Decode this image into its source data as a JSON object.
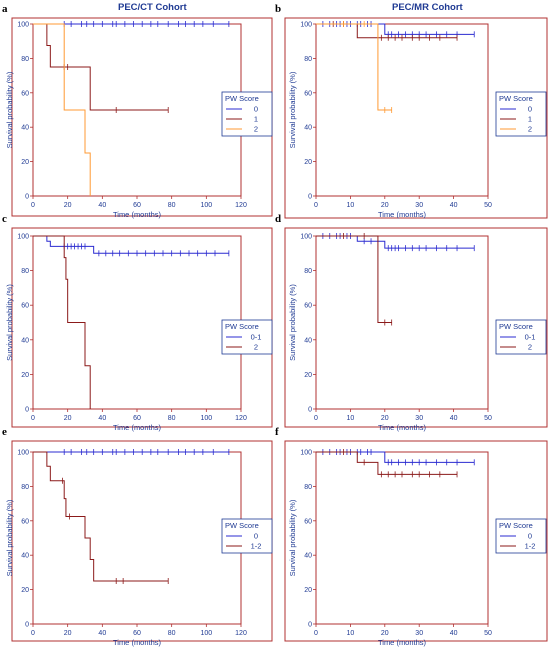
{
  "figure": {
    "column_titles": [
      "PEC/CT Cohort",
      "PEC/MR Cohort"
    ],
    "colors": {
      "frame": "#b03030",
      "axis_text": "#1f3a93",
      "panel_letter": "#000000",
      "series": [
        "#2b2bd0",
        "#8b1a1a",
        "#ff9a33"
      ]
    }
  },
  "chart_data": [
    {
      "panel": "a",
      "type": "line",
      "subtype": "kaplan-meier",
      "xlabel": "Time (months)",
      "ylabel": "Survival probability (%)",
      "xlim": [
        0,
        120
      ],
      "ylim": [
        0,
        100
      ],
      "xticks": [
        0,
        20,
        40,
        60,
        80,
        100,
        120
      ],
      "yticks": [
        0,
        20,
        40,
        60,
        80,
        100
      ],
      "legend_title": "PW Score",
      "legend_position": "right",
      "series": [
        {
          "name": "0",
          "color": "#2b2bd0",
          "end": 113,
          "steps": [
            [
              0,
              100
            ]
          ],
          "censored": [
            18,
            22,
            28,
            31,
            35,
            40,
            46,
            48,
            53,
            58,
            63,
            68,
            72,
            78,
            84,
            88,
            93,
            98,
            104,
            113
          ]
        },
        {
          "name": "1",
          "color": "#8b1a1a",
          "end": 78,
          "steps": [
            [
              0,
              100
            ],
            [
              8,
              87.5
            ],
            [
              10,
              75
            ],
            [
              33,
              50
            ]
          ],
          "censored": [
            18,
            20,
            48,
            78
          ]
        },
        {
          "name": "2",
          "color": "#ff9a33",
          "end": 33,
          "steps": [
            [
              0,
              100
            ],
            [
              18,
              50
            ],
            [
              30,
              25
            ],
            [
              33,
              0
            ]
          ],
          "censored": []
        }
      ]
    },
    {
      "panel": "b",
      "type": "line",
      "subtype": "kaplan-meier",
      "xlabel": "Time (months)",
      "ylabel": "Survival probability (%)",
      "xlim": [
        0,
        50
      ],
      "ylim": [
        0,
        100
      ],
      "xticks": [
        0,
        10,
        20,
        30,
        40,
        50
      ],
      "yticks": [
        0,
        20,
        40,
        60,
        80,
        100
      ],
      "legend_title": "PW Score",
      "legend_position": "right",
      "series": [
        {
          "name": "0",
          "color": "#2b2bd0",
          "end": 46,
          "steps": [
            [
              0,
              100
            ],
            [
              20,
              94
            ]
          ],
          "censored": [
            2,
            4,
            6,
            7,
            9,
            10,
            12,
            13,
            15,
            16,
            21,
            22,
            24,
            26,
            28,
            30,
            32,
            35,
            38,
            41,
            46
          ]
        },
        {
          "name": "1",
          "color": "#8b1a1a",
          "end": 41,
          "steps": [
            [
              0,
              100
            ],
            [
              12,
              92
            ]
          ],
          "censored": [
            5,
            8,
            19,
            21,
            23,
            25,
            28,
            30,
            33,
            36,
            41
          ]
        },
        {
          "name": "2",
          "color": "#ff9a33",
          "end": 22,
          "steps": [
            [
              0,
              100
            ],
            [
              18,
              50
            ]
          ],
          "censored": [
            8,
            14,
            20,
            22
          ]
        }
      ]
    },
    {
      "panel": "c",
      "type": "line",
      "subtype": "kaplan-meier",
      "xlabel": "Time (months)",
      "ylabel": "Survival probability (%)",
      "xlim": [
        0,
        120
      ],
      "ylim": [
        0,
        100
      ],
      "xticks": [
        0,
        20,
        40,
        60,
        80,
        100,
        120
      ],
      "yticks": [
        0,
        20,
        40,
        60,
        80,
        100
      ],
      "legend_title": "PW Score",
      "legend_position": "right",
      "series": [
        {
          "name": "0-1",
          "color": "#2b2bd0",
          "end": 113,
          "steps": [
            [
              0,
              100
            ],
            [
              8,
              97
            ],
            [
              10,
              94
            ],
            [
              35,
              90
            ]
          ],
          "censored": [
            18,
            20,
            22,
            24,
            26,
            28,
            30,
            38,
            42,
            46,
            50,
            55,
            60,
            65,
            70,
            75,
            80,
            85,
            90,
            95,
            100,
            105,
            113
          ]
        },
        {
          "name": "2",
          "color": "#8b1a1a",
          "end": 33,
          "steps": [
            [
              0,
              100
            ],
            [
              18,
              87.5
            ],
            [
              19,
              75
            ],
            [
              20,
              50
            ],
            [
              30,
              25
            ],
            [
              33,
              0
            ]
          ],
          "censored": []
        }
      ]
    },
    {
      "panel": "d",
      "type": "line",
      "subtype": "kaplan-meier",
      "xlabel": "Time (months)",
      "ylabel": "Survival probability (%)",
      "xlim": [
        0,
        50
      ],
      "ylim": [
        0,
        100
      ],
      "xticks": [
        0,
        10,
        20,
        30,
        40,
        50
      ],
      "yticks": [
        0,
        20,
        40,
        60,
        80,
        100
      ],
      "legend_title": "PW Score",
      "legend_position": "right",
      "series": [
        {
          "name": "0-1",
          "color": "#2b2bd0",
          "end": 46,
          "steps": [
            [
              0,
              100
            ],
            [
              12,
              97
            ],
            [
              20,
              93
            ]
          ],
          "censored": [
            2,
            4,
            6,
            7,
            9,
            10,
            14,
            16,
            21,
            22,
            23,
            24,
            26,
            28,
            30,
            32,
            35,
            38,
            41,
            46
          ]
        },
        {
          "name": "2",
          "color": "#8b1a1a",
          "end": 22,
          "steps": [
            [
              0,
              100
            ],
            [
              18,
              50
            ]
          ],
          "censored": [
            8,
            14,
            20,
            22
          ]
        }
      ]
    },
    {
      "panel": "e",
      "type": "line",
      "subtype": "kaplan-meier",
      "xlabel": "Time (months)",
      "ylabel": "Survival probability (%)",
      "xlim": [
        0,
        120
      ],
      "ylim": [
        0,
        100
      ],
      "xticks": [
        0,
        20,
        40,
        60,
        80,
        100,
        120
      ],
      "yticks": [
        0,
        20,
        40,
        60,
        80,
        100
      ],
      "legend_title": "PW Score",
      "legend_position": "right",
      "series": [
        {
          "name": "0",
          "color": "#2b2bd0",
          "end": 113,
          "steps": [
            [
              0,
              100
            ]
          ],
          "censored": [
            18,
            22,
            28,
            31,
            35,
            40,
            46,
            48,
            53,
            58,
            63,
            68,
            72,
            78,
            84,
            88,
            93,
            98,
            104,
            113
          ]
        },
        {
          "name": "1-2",
          "color": "#8b1a1a",
          "end": 78,
          "steps": [
            [
              0,
              100
            ],
            [
              8,
              91.7
            ],
            [
              10,
              83.3
            ],
            [
              18,
              72.9
            ],
            [
              19,
              62.5
            ],
            [
              30,
              50
            ],
            [
              33,
              37.5
            ],
            [
              35,
              25
            ]
          ],
          "censored": [
            17,
            21,
            48,
            52,
            78
          ]
        }
      ]
    },
    {
      "panel": "f",
      "type": "line",
      "subtype": "kaplan-meier",
      "xlabel": "Time (months)",
      "ylabel": "Survival probability (%)",
      "xlim": [
        0,
        50
      ],
      "ylim": [
        0,
        100
      ],
      "xticks": [
        0,
        10,
        20,
        30,
        40,
        50
      ],
      "yticks": [
        0,
        20,
        40,
        60,
        80,
        100
      ],
      "legend_title": "PW Score",
      "legend_position": "right",
      "series": [
        {
          "name": "0",
          "color": "#2b2bd0",
          "end": 46,
          "steps": [
            [
              0,
              100
            ],
            [
              20,
              94
            ]
          ],
          "censored": [
            2,
            4,
            6,
            7,
            9,
            10,
            12,
            13,
            15,
            16,
            21,
            22,
            24,
            26,
            28,
            30,
            32,
            35,
            38,
            41,
            46
          ]
        },
        {
          "name": "1-2",
          "color": "#8b1a1a",
          "end": 41,
          "steps": [
            [
              0,
              100
            ],
            [
              12,
              94
            ],
            [
              18,
              87
            ]
          ],
          "censored": [
            8,
            14,
            19,
            21,
            23,
            25,
            28,
            30,
            33,
            36,
            41
          ]
        }
      ]
    }
  ]
}
